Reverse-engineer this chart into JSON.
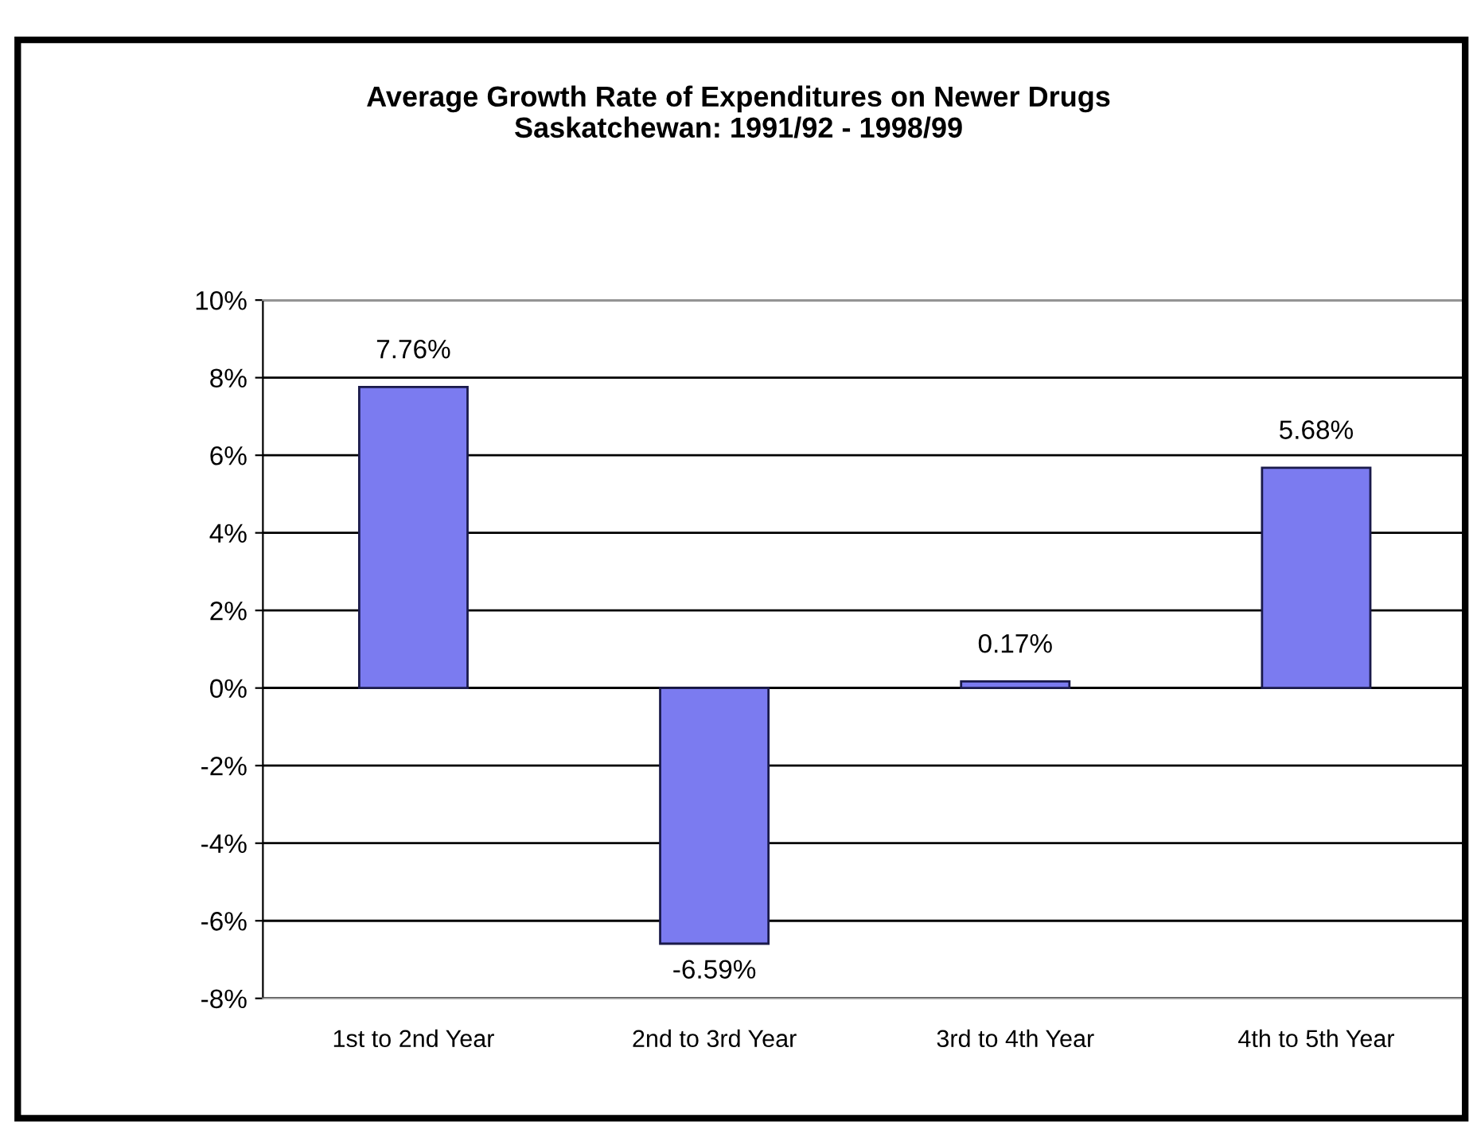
{
  "chart_data": {
    "type": "bar",
    "title": "Average Growth Rate of Expenditures on Newer Drugs\nSaskatchewan: 1991/92 - 1998/99",
    "categories": [
      "1st to 2nd Year",
      "2nd to 3rd Year",
      "3rd to 4th Year",
      "4th to 5th Year"
    ],
    "values": [
      7.76,
      -6.59,
      0.17,
      5.68
    ],
    "value_labels": [
      "7.76%",
      "-6.59%",
      "0.17%",
      "5.68%"
    ],
    "color": "#7b7bf0",
    "ylim": [
      -8,
      10
    ],
    "yticks": [
      {
        "value": -8,
        "label": "-8%"
      },
      {
        "value": -6,
        "label": "-6%"
      },
      {
        "value": -4,
        "label": "-4%"
      },
      {
        "value": -2,
        "label": "-2%"
      },
      {
        "value": 0,
        "label": "0%"
      },
      {
        "value": 2,
        "label": "2%"
      },
      {
        "value": 4,
        "label": "4%"
      },
      {
        "value": 6,
        "label": "6%"
      },
      {
        "value": 8,
        "label": "8%"
      },
      {
        "value": 10,
        "label": "10%"
      }
    ],
    "grid": "y",
    "legend": false
  }
}
